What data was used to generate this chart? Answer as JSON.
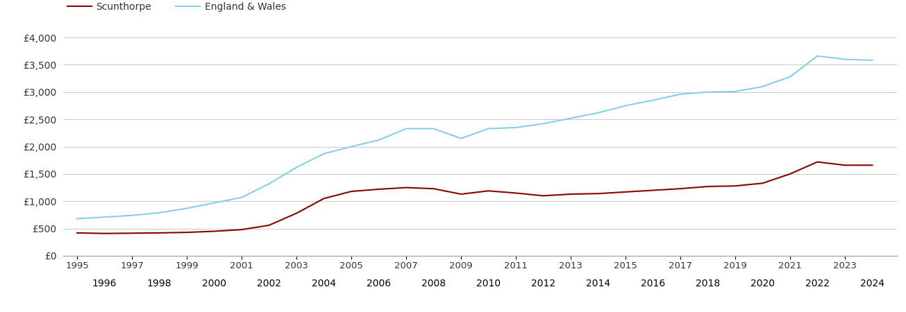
{
  "scunthorpe_years": [
    1995,
    1996,
    1997,
    1998,
    1999,
    2000,
    2001,
    2002,
    2003,
    2004,
    2005,
    2006,
    2007,
    2008,
    2009,
    2010,
    2011,
    2012,
    2013,
    2014,
    2015,
    2016,
    2017,
    2018,
    2019,
    2020,
    2021,
    2022,
    2023,
    2024
  ],
  "scunthorpe_values": [
    420,
    410,
    415,
    420,
    430,
    450,
    480,
    560,
    780,
    1050,
    1180,
    1220,
    1250,
    1230,
    1130,
    1190,
    1150,
    1100,
    1130,
    1140,
    1170,
    1200,
    1230,
    1270,
    1280,
    1330,
    1500,
    1720,
    1660,
    1660
  ],
  "england_years": [
    1995,
    1996,
    1997,
    1998,
    1999,
    2000,
    2001,
    2002,
    2003,
    2004,
    2005,
    2006,
    2007,
    2008,
    2009,
    2010,
    2011,
    2012,
    2013,
    2014,
    2015,
    2016,
    2017,
    2018,
    2019,
    2020,
    2021,
    2022,
    2023,
    2024
  ],
  "england_values": [
    680,
    710,
    740,
    790,
    870,
    970,
    1070,
    1320,
    1620,
    1870,
    2000,
    2120,
    2330,
    2330,
    2150,
    2330,
    2350,
    2420,
    2520,
    2620,
    2750,
    2850,
    2960,
    3000,
    3010,
    3100,
    3280,
    3660,
    3600,
    3580
  ],
  "scunthorpe_color": "#8b0000",
  "england_color": "#87ceeb",
  "background_color": "#ffffff",
  "grid_color": "#cccccc",
  "ylim": [
    0,
    4000
  ],
  "yticks": [
    0,
    500,
    1000,
    1500,
    2000,
    2500,
    3000,
    3500,
    4000
  ],
  "ytick_labels": [
    "£0",
    "£500",
    "£1,000",
    "£1,500",
    "£2,000",
    "£2,500",
    "£3,000",
    "£3,500",
    "£4,000"
  ],
  "legend_scunthorpe": "Scunthorpe",
  "legend_england": "England & Wales",
  "line_width": 1.5,
  "xlim": [
    1994.5,
    2024.9
  ]
}
